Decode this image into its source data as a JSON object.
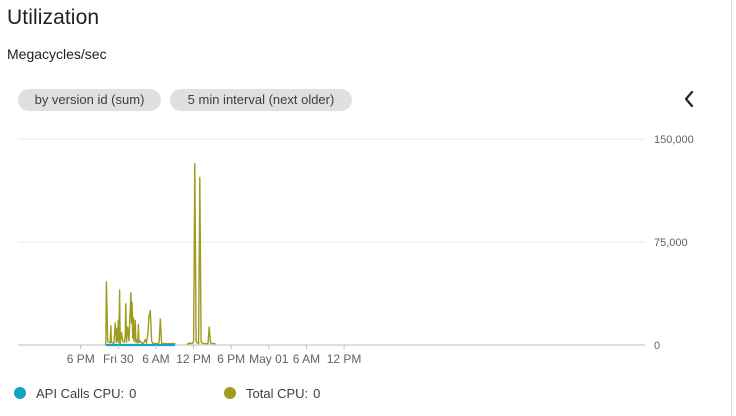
{
  "card": {
    "title": "Utilization",
    "subtitle": "Megacycles/sec"
  },
  "filters": [
    {
      "label": "by version id (sum)"
    },
    {
      "label": "5 min interval (next older)"
    }
  ],
  "collapse_icon": "chevron-left-icon",
  "colors": {
    "api_calls": "#12a4c6",
    "total_cpu": "#9e9b1f",
    "grid": "#e8e8e8",
    "axis_text": "#5f6368"
  },
  "chart_data": {
    "type": "line",
    "title": "",
    "xlabel": "",
    "ylabel": "",
    "ylim": [
      0,
      150000
    ],
    "y_ticks": [
      "150,000",
      "75,000",
      "0"
    ],
    "y_tick_values": [
      150000,
      75000,
      0
    ],
    "x_unit": "hours since 12 PM (first day)",
    "x_range": [
      -4,
      96
    ],
    "x_ticks": [
      {
        "label": "6 PM",
        "x": 6
      },
      {
        "label": "Fri 30",
        "x": 12
      },
      {
        "label": "6 AM",
        "x": 18
      },
      {
        "label": "12 PM",
        "x": 24
      },
      {
        "label": "6 PM",
        "x": 30
      },
      {
        "label": "May 01",
        "x": 36
      },
      {
        "label": "6 AM",
        "x": 42
      },
      {
        "label": "12 PM",
        "x": 48
      }
    ],
    "series": [
      {
        "name": "API Calls CPU",
        "legend_value": "0",
        "segments": [
          {
            "x": [
              10.0,
              14.0,
              15.0,
              17.0,
              19.0,
              21.0
            ],
            "y": [
              0,
              0,
              0,
              0,
              0,
              0
            ]
          }
        ]
      },
      {
        "name": "Total CPU",
        "legend_value": "0",
        "segments": [
          {
            "x": [
              10.0,
              10.1,
              10.3,
              10.5,
              10.7,
              10.8,
              10.9,
              11.1,
              11.3,
              11.5,
              11.7,
              11.8,
              11.9,
              12.0,
              12.1,
              12.2,
              12.3,
              12.5,
              12.7,
              12.9,
              13.1,
              13.2,
              13.3,
              13.5,
              13.7,
              14.0,
              14.1,
              14.2,
              14.3,
              14.4,
              14.5,
              14.6,
              14.7,
              14.8,
              14.9,
              15.0,
              15.1,
              15.2,
              15.3,
              15.5,
              15.7,
              15.9,
              16.1,
              16.3,
              16.5,
              16.7,
              16.9,
              17.1,
              17.3,
              17.5,
              17.7,
              17.9,
              18.1,
              18.3,
              18.5,
              18.7,
              18.9,
              19.0,
              19.1,
              19.3,
              19.5,
              19.7,
              19.9,
              20.1,
              20.3,
              20.5,
              20.7,
              20.9,
              21.1
            ],
            "y": [
              0,
              46000,
              3000,
              2000,
              1500,
              14000,
              2000,
              1500,
              1000,
              16000,
              2000,
              12000,
              3000,
              18000,
              1500,
              40000,
              1000,
              9000,
              3000,
              2000,
              6000,
              30000,
              2000,
              13000,
              3000,
              38000,
              16000,
              31000,
              5000,
              20000,
              3000,
              4000,
              18000,
              2000,
              4000,
              2000,
              1500,
              15000,
              2000,
              3000,
              1500,
              1000,
              2000,
              4000,
              1500,
              8000,
              21000,
              25000,
              3000,
              1000,
              1000,
              1000,
              1000,
              1000,
              1500,
              19000,
              1500,
              1000,
              1000,
              1000,
              1000,
              1000,
              1000,
              1000,
              1000,
              1000,
              1000,
              1000,
              1000
            ]
          },
          {
            "x": [
              23.0,
              23.1,
              23.3,
              23.5,
              23.6,
              23.8,
              24.0,
              24.2,
              24.4,
              24.6,
              24.8,
              25.0,
              25.2,
              25.4,
              25.5,
              25.7,
              25.9,
              26.1,
              26.3,
              26.5,
              26.7,
              26.8,
              26.9,
              27.1,
              27.3,
              27.5
            ],
            "y": [
              0,
              1000,
              1000,
              1500,
              1000,
              1000,
              2500,
              132000,
              3000,
              1500,
              1000,
              122000,
              2500,
              1500,
              1000,
              1000,
              1000,
              1000,
              1000,
              13000,
              1500,
              1000,
              1000,
              1000,
              1000,
              1000
            ]
          }
        ]
      }
    ]
  }
}
